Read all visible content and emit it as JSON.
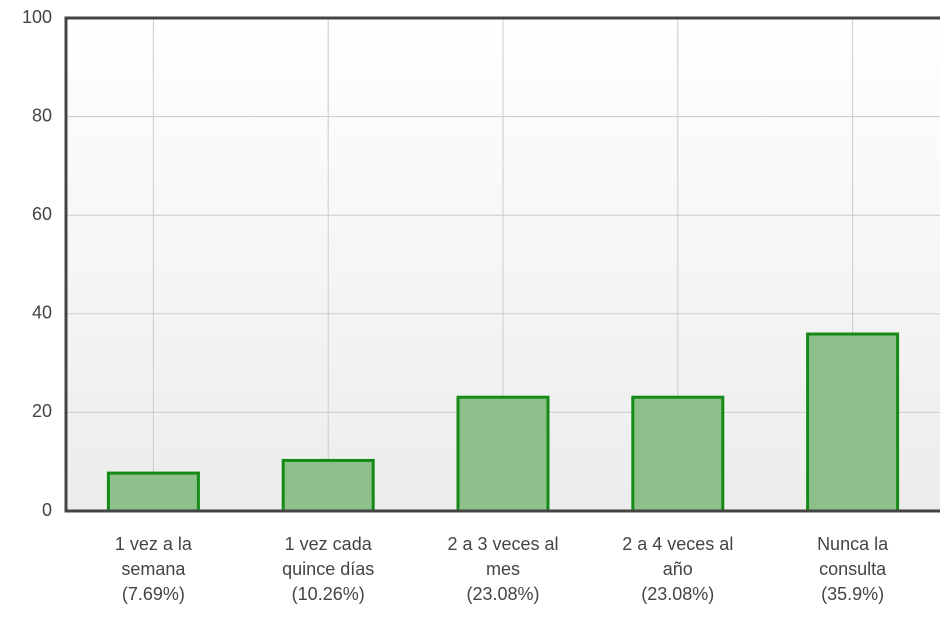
{
  "chart_data": {
    "type": "bar",
    "categories": [
      "1 vez a la\nsemana\n(7.69%)",
      "1 vez cada\nquince días\n(10.26%)",
      "2 a 3 veces al\nmes\n(23.08%)",
      "2 a 4 veces al\naño\n(23.08%)",
      "Nunca la\nconsulta\n(35.9%)"
    ],
    "values": [
      7.69,
      10.26,
      23.08,
      23.08,
      35.9
    ],
    "color": "#8dc08b",
    "edge_color": "#168a16",
    "ylim": [
      0,
      100
    ],
    "yticks": [
      0,
      20,
      40,
      60,
      80,
      100
    ],
    "grid": true
  }
}
